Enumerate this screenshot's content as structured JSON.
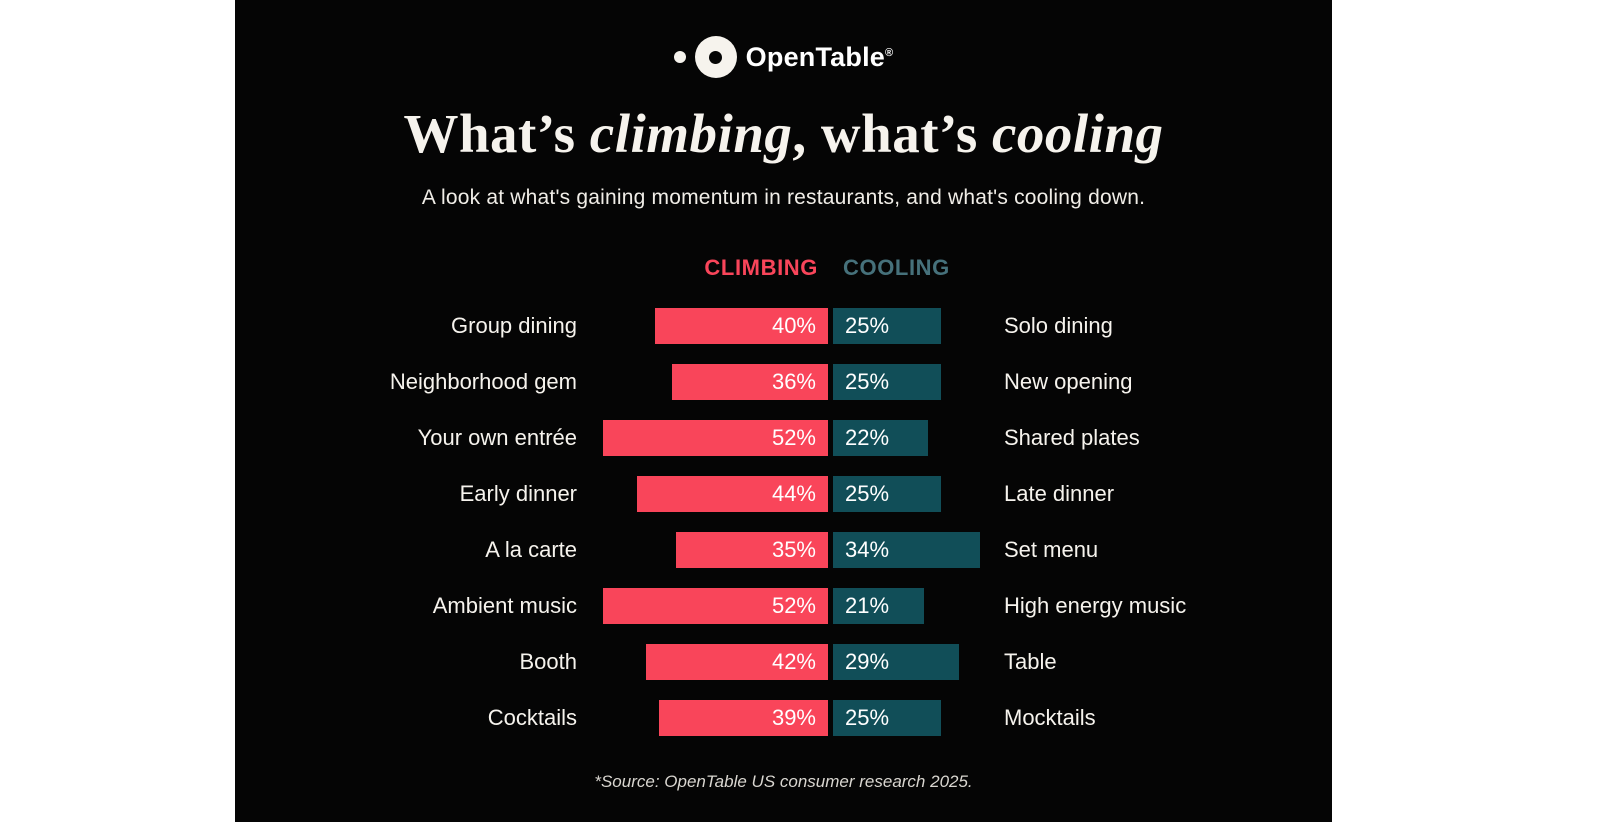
{
  "brand": {
    "logo_text": "OpenTable",
    "registered_mark": "®"
  },
  "header": {
    "title_segments": [
      {
        "text": "What’s ",
        "italic": false
      },
      {
        "text": "climbing",
        "italic": true
      },
      {
        "text": ", what’s ",
        "italic": false
      },
      {
        "text": "cooling",
        "italic": true
      }
    ],
    "subtitle": "A look at what's gaining momentum in restaurants, and what's cooling down."
  },
  "legend": {
    "climbing_label": "CLIMBING",
    "cooling_label": "COOLING"
  },
  "colors": {
    "background": "#050505",
    "climbing": "#f9455a",
    "cooling": "#114e58",
    "climbing_header_text": "#f9455a",
    "cooling_header_text": "#46717b",
    "text": "#f6f3ed"
  },
  "chart_data": {
    "type": "bar",
    "orientation": "diverging-horizontal",
    "unit": "%",
    "xlim": [
      0,
      55
    ],
    "series": [
      {
        "name": "Climbing",
        "color": "#f9455a"
      },
      {
        "name": "Cooling",
        "color": "#114e58"
      }
    ],
    "rows": [
      {
        "climbing_label": "Group dining",
        "climbing_value": 40,
        "cooling_value": 25,
        "cooling_label": "Solo dining"
      },
      {
        "climbing_label": "Neighborhood gem",
        "climbing_value": 36,
        "cooling_value": 25,
        "cooling_label": "New opening"
      },
      {
        "climbing_label": "Your own entrée",
        "climbing_value": 52,
        "cooling_value": 22,
        "cooling_label": "Shared plates"
      },
      {
        "climbing_label": "Early dinner",
        "climbing_value": 44,
        "cooling_value": 25,
        "cooling_label": "Late dinner"
      },
      {
        "climbing_label": "A la carte",
        "climbing_value": 35,
        "cooling_value": 34,
        "cooling_label": "Set menu"
      },
      {
        "climbing_label": "Ambient music",
        "climbing_value": 52,
        "cooling_value": 21,
        "cooling_label": "High energy music"
      },
      {
        "climbing_label": "Booth",
        "climbing_value": 42,
        "cooling_value": 29,
        "cooling_label": "Table"
      },
      {
        "climbing_label": "Cocktails",
        "climbing_value": 39,
        "cooling_value": 25,
        "cooling_label": "Mocktails"
      }
    ]
  },
  "footer": {
    "source": "*Source: OpenTable US consumer research 2025."
  }
}
